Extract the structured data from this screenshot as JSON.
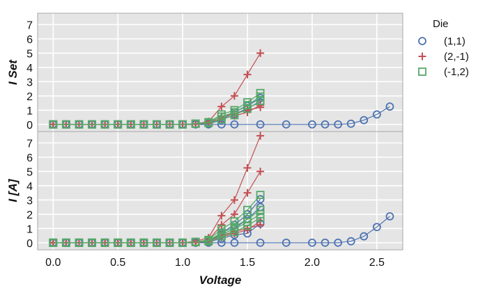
{
  "chart_data": {
    "type": "line",
    "xlabel": "Voltage",
    "legend": {
      "title": "Die",
      "placement": "right-outside",
      "entries": [
        {
          "name": "(1,1)",
          "color": "#4c72b0",
          "marker": "circle"
        },
        {
          "name": "(2,-1)",
          "color": "#c44e52",
          "marker": "plus"
        },
        {
          "name": "(-1,2)",
          "color": "#55a868",
          "marker": "square"
        }
      ]
    },
    "x_ticks": [
      "0.0",
      "0.5",
      "1.0",
      "1.5",
      "2.0",
      "2.5"
    ],
    "xlim": [
      -0.12,
      2.7
    ],
    "grid": true,
    "panels": [
      {
        "ylabel": "I Set",
        "ylim": [
          -0.5,
          7.8
        ],
        "y_ticks": [
          "0",
          "1",
          "2",
          "3",
          "4",
          "5",
          "6",
          "7"
        ],
        "series": [
          {
            "die": "(1,1)",
            "x": [
              0.0,
              0.1,
              0.2,
              0.3,
              0.4,
              0.5,
              0.6,
              0.7,
              0.8,
              0.9,
              1.0,
              1.1,
              1.2,
              1.3,
              1.4,
              1.6,
              1.8,
              2.0,
              2.1,
              2.2,
              2.3,
              2.4,
              2.5,
              2.6
            ],
            "y": [
              0,
              0,
              0,
              0,
              0,
              0,
              0,
              0,
              0,
              0,
              0,
              0,
              0,
              0,
              0,
              0,
              0,
              0,
              0,
              0,
              0.05,
              0.3,
              0.7,
              1.25
            ]
          },
          {
            "die": "(1,1)",
            "x": [
              0.0,
              0.1,
              0.2,
              0.3,
              0.4,
              0.5,
              0.6,
              0.7,
              0.8,
              0.9,
              1.0,
              1.1,
              1.2,
              1.3,
              1.4,
              1.5,
              1.6
            ],
            "y": [
              0,
              0,
              0,
              0,
              0,
              0,
              0,
              0,
              0,
              0,
              0,
              0,
              0.05,
              0.3,
              0.7,
              1.15,
              1.55
            ]
          },
          {
            "die": "(1,1)",
            "x": [
              0.0,
              0.1,
              0.2,
              0.3,
              0.4,
              0.5,
              0.6,
              0.7,
              0.8,
              0.9,
              1.0,
              1.1,
              1.2,
              1.3,
              1.4,
              1.5,
              1.6
            ],
            "y": [
              0,
              0,
              0,
              0,
              0,
              0,
              0,
              0,
              0,
              0,
              0,
              0,
              0.05,
              0.35,
              0.85,
              1.3,
              1.85
            ]
          },
          {
            "die": "(2,-1)",
            "x": [
              0.0,
              0.1,
              0.2,
              0.3,
              0.4,
              0.5,
              0.6,
              0.7,
              0.8,
              0.9,
              1.0,
              1.1,
              1.2,
              1.3,
              1.4,
              1.5,
              1.6
            ],
            "y": [
              0,
              0,
              0,
              0,
              0,
              0,
              0,
              0,
              0,
              0,
              0,
              0.05,
              0.2,
              1.25,
              2.0,
              3.5,
              5.0
            ]
          },
          {
            "die": "(2,-1)",
            "x": [
              0.0,
              0.1,
              0.2,
              0.3,
              0.4,
              0.5,
              0.6,
              0.7,
              0.8,
              0.9,
              1.0,
              1.1,
              1.2,
              1.3,
              1.4,
              1.5,
              1.6
            ],
            "y": [
              0,
              0,
              0,
              0,
              0,
              0,
              0,
              0,
              0,
              0,
              0,
              0.02,
              0.1,
              0.55,
              0.75,
              1.0,
              1.2
            ]
          },
          {
            "die": "(2,-1)",
            "x": [
              0.0,
              0.1,
              0.2,
              0.3,
              0.4,
              0.5,
              0.6,
              0.7,
              0.8,
              0.9,
              1.0,
              1.1,
              1.2,
              1.3,
              1.4,
              1.5,
              1.6
            ],
            "y": [
              0,
              0,
              0,
              0,
              0,
              0,
              0,
              0,
              0,
              0,
              0,
              0.02,
              0.1,
              0.4,
              0.6,
              0.85,
              1.35
            ]
          },
          {
            "die": "(-1,2)",
            "x": [
              0.0,
              0.1,
              0.2,
              0.3,
              0.4,
              0.5,
              0.6,
              0.7,
              0.8,
              0.9,
              1.0,
              1.1,
              1.2,
              1.3,
              1.4,
              1.5,
              1.6
            ],
            "y": [
              0,
              0,
              0,
              0,
              0,
              0,
              0,
              0,
              0,
              0,
              0,
              0.05,
              0.15,
              0.7,
              1.0,
              1.55,
              2.2
            ]
          },
          {
            "die": "(-1,2)",
            "x": [
              0.0,
              0.1,
              0.2,
              0.3,
              0.4,
              0.5,
              0.6,
              0.7,
              0.8,
              0.9,
              1.0,
              1.1,
              1.2,
              1.3,
              1.4,
              1.5,
              1.6
            ],
            "y": [
              0,
              0,
              0,
              0,
              0,
              0,
              0,
              0,
              0,
              0,
              0,
              0.05,
              0.15,
              0.55,
              0.85,
              1.35,
              1.95
            ]
          },
          {
            "die": "(-1,2)",
            "x": [
              0.0,
              0.1,
              0.2,
              0.3,
              0.4,
              0.5,
              0.6,
              0.7,
              0.8,
              0.9,
              1.0,
              1.1,
              1.2,
              1.3,
              1.4,
              1.5,
              1.6
            ],
            "y": [
              0,
              0,
              0,
              0,
              0,
              0,
              0,
              0,
              0,
              0,
              0,
              0.05,
              0.1,
              0.35,
              0.65,
              1.1,
              1.65
            ]
          }
        ]
      },
      {
        "ylabel": "I [A]",
        "ylim": [
          -0.5,
          7.8
        ],
        "y_ticks": [
          "0",
          "1",
          "2",
          "3",
          "4",
          "5",
          "6",
          "7"
        ],
        "series": [
          {
            "die": "(1,1)",
            "x": [
              0.0,
              0.1,
              0.2,
              0.3,
              0.4,
              0.5,
              0.6,
              0.7,
              0.8,
              0.9,
              1.0,
              1.1,
              1.2,
              1.3,
              1.4,
              1.6,
              1.8,
              2.0,
              2.1,
              2.2,
              2.3,
              2.4,
              2.5,
              2.6
            ],
            "y": [
              0,
              0,
              0,
              0,
              0,
              0,
              0,
              0,
              0,
              0,
              0,
              0,
              0,
              0,
              0,
              0,
              0,
              0,
              0,
              0,
              0.1,
              0.45,
              1.1,
              1.85
            ]
          },
          {
            "die": "(1,1)",
            "x": [
              0.0,
              0.1,
              0.2,
              0.3,
              0.4,
              0.5,
              0.6,
              0.7,
              0.8,
              0.9,
              1.0,
              1.1,
              1.2,
              1.3,
              1.4,
              1.5,
              1.6
            ],
            "y": [
              0,
              0,
              0,
              0,
              0,
              0,
              0,
              0,
              0,
              0,
              0,
              0,
              0.05,
              0.3,
              0.55,
              0.65,
              1.35
            ]
          },
          {
            "die": "(1,1)",
            "x": [
              0.0,
              0.1,
              0.2,
              0.3,
              0.4,
              0.5,
              0.6,
              0.7,
              0.8,
              0.9,
              1.0,
              1.1,
              1.2,
              1.3,
              1.4,
              1.5,
              1.6
            ],
            "y": [
              0,
              0,
              0,
              0,
              0,
              0,
              0,
              0,
              0,
              0,
              0,
              0,
              0.1,
              0.55,
              1.0,
              1.65,
              2.5
            ]
          },
          {
            "die": "(1,1)",
            "x": [
              0.0,
              0.1,
              0.2,
              0.3,
              0.4,
              0.5,
              0.6,
              0.7,
              0.8,
              0.9,
              1.0,
              1.1,
              1.2,
              1.3,
              1.4,
              1.5,
              1.6
            ],
            "y": [
              0,
              0,
              0,
              0,
              0,
              0,
              0,
              0,
              0,
              0,
              0,
              0,
              0.1,
              0.7,
              1.25,
              2.0,
              3.05
            ]
          },
          {
            "die": "(2,-1)",
            "x": [
              0.0,
              0.1,
              0.2,
              0.3,
              0.4,
              0.5,
              0.6,
              0.7,
              0.8,
              0.9,
              1.0,
              1.1,
              1.2,
              1.3,
              1.4,
              1.5,
              1.6
            ],
            "y": [
              0,
              0,
              0,
              0,
              0,
              0,
              0,
              0,
              0,
              0,
              0,
              0.1,
              0.35,
              1.9,
              3.0,
              5.25,
              7.5
            ]
          },
          {
            "die": "(2,-1)",
            "x": [
              0.0,
              0.1,
              0.2,
              0.3,
              0.4,
              0.5,
              0.6,
              0.7,
              0.8,
              0.9,
              1.0,
              1.1,
              1.2,
              1.3,
              1.4,
              1.5,
              1.6
            ],
            "y": [
              0,
              0,
              0,
              0,
              0,
              0,
              0,
              0,
              0,
              0,
              0,
              0.05,
              0.2,
              1.25,
              2.0,
              3.5,
              5.0
            ]
          },
          {
            "die": "(2,-1)",
            "x": [
              0.0,
              0.1,
              0.2,
              0.3,
              0.4,
              0.5,
              0.6,
              0.7,
              0.8,
              0.9,
              1.0,
              1.1,
              1.2,
              1.3,
              1.4,
              1.5,
              1.6
            ],
            "y": [
              0,
              0,
              0,
              0,
              0,
              0,
              0,
              0,
              0,
              0,
              0,
              0.02,
              0.1,
              0.5,
              0.8,
              1.0,
              1.25
            ]
          },
          {
            "die": "(2,-1)",
            "x": [
              0.0,
              0.1,
              0.2,
              0.3,
              0.4,
              0.5,
              0.6,
              0.7,
              0.8,
              0.9,
              1.0,
              1.1,
              1.2,
              1.3,
              1.4,
              1.5,
              1.6
            ],
            "y": [
              0,
              0,
              0,
              0,
              0,
              0,
              0,
              0,
              0,
              0,
              0,
              0.02,
              0.1,
              0.4,
              0.65,
              0.9,
              1.5
            ]
          },
          {
            "die": "(-1,2)",
            "x": [
              0.0,
              0.1,
              0.2,
              0.3,
              0.4,
              0.5,
              0.6,
              0.7,
              0.8,
              0.9,
              1.0,
              1.1,
              1.2,
              1.3,
              1.4,
              1.5,
              1.6
            ],
            "y": [
              0,
              0,
              0,
              0,
              0,
              0,
              0,
              0,
              0,
              0,
              0,
              0.05,
              0.2,
              0.95,
              1.5,
              2.3,
              3.35
            ]
          },
          {
            "die": "(-1,2)",
            "x": [
              0.0,
              0.1,
              0.2,
              0.3,
              0.4,
              0.5,
              0.6,
              0.7,
              0.8,
              0.9,
              1.0,
              1.1,
              1.2,
              1.3,
              1.4,
              1.5,
              1.6
            ],
            "y": [
              0,
              0,
              0,
              0,
              0,
              0,
              0,
              0,
              0,
              0,
              0,
              0.05,
              0.15,
              0.7,
              1.1,
              1.65,
              2.3
            ]
          },
          {
            "die": "(-1,2)",
            "x": [
              0.0,
              0.1,
              0.2,
              0.3,
              0.4,
              0.5,
              0.6,
              0.7,
              0.8,
              0.9,
              1.0,
              1.1,
              1.2,
              1.3,
              1.4,
              1.5,
              1.6
            ],
            "y": [
              0,
              0,
              0,
              0,
              0,
              0,
              0,
              0,
              0,
              0,
              0,
              0.05,
              0.15,
              0.6,
              0.95,
              1.45,
              2.0
            ]
          },
          {
            "die": "(-1,2)",
            "x": [
              0.0,
              0.1,
              0.2,
              0.3,
              0.4,
              0.5,
              0.6,
              0.7,
              0.8,
              0.9,
              1.0,
              1.1,
              1.2,
              1.3,
              1.4,
              1.5,
              1.6
            ],
            "y": [
              0,
              0,
              0,
              0,
              0,
              0,
              0,
              0,
              0,
              0,
              0,
              0.05,
              0.1,
              0.45,
              0.75,
              1.2,
              1.75
            ]
          }
        ]
      }
    ]
  }
}
